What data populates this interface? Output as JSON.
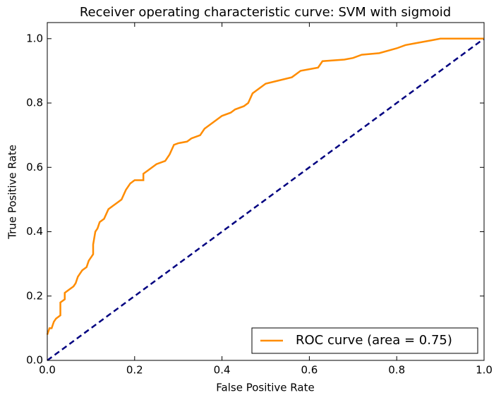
{
  "chart_data": {
    "type": "line",
    "title": "Receiver operating characteristic curve: SVM with sigmoid",
    "x_label": "False Positive Rate",
    "y_label": "True Positive Rate",
    "xlim": [
      0,
      1
    ],
    "ylim": [
      0,
      1.05
    ],
    "xticks": [
      {
        "value": 0,
        "label": "0.0"
      },
      0.2,
      0.4,
      0.6,
      0.8,
      {
        "value": 1,
        "label": "1.0"
      }
    ],
    "yticks": [
      {
        "value": 0,
        "label": "0.0"
      },
      0.2,
      0.4,
      0.6,
      0.8,
      {
        "value": 1,
        "label": "1.0"
      }
    ],
    "legend": "lower right",
    "series": [
      {
        "name": "ROC curve (area = 0.75)",
        "color": "#ff8c00",
        "dash": false,
        "x": [
          0,
          0.005,
          0.01,
          0.015,
          0.02,
          0.03,
          0.03,
          0.04,
          0.04,
          0.05,
          0.06,
          0.065,
          0.07,
          0.075,
          0.08,
          0.09,
          0.095,
          0.1,
          0.105,
          0.105,
          0.11,
          0.115,
          0.12,
          0.13,
          0.14,
          0.15,
          0.16,
          0.17,
          0.18,
          0.19,
          0.2,
          0.22,
          0.22,
          0.23,
          0.25,
          0.27,
          0.28,
          0.29,
          0.3,
          0.32,
          0.33,
          0.35,
          0.36,
          0.38,
          0.4,
          0.42,
          0.43,
          0.45,
          0.46,
          0.47,
          0.48,
          0.5,
          0.53,
          0.56,
          0.58,
          0.6,
          0.62,
          0.63,
          0.68,
          0.7,
          0.72,
          0.76,
          0.8,
          0.82,
          0.84,
          0.86,
          0.88,
          0.9,
          1
        ],
        "values": [
          0.08,
          0.1,
          0.1,
          0.12,
          0.13,
          0.14,
          0.18,
          0.19,
          0.21,
          0.22,
          0.23,
          0.24,
          0.26,
          0.27,
          0.28,
          0.29,
          0.31,
          0.32,
          0.33,
          0.36,
          0.4,
          0.41,
          0.43,
          0.44,
          0.47,
          0.48,
          0.49,
          0.5,
          0.53,
          0.55,
          0.56,
          0.56,
          0.58,
          0.59,
          0.61,
          0.62,
          0.64,
          0.67,
          0.675,
          0.68,
          0.69,
          0.7,
          0.72,
          0.74,
          0.76,
          0.77,
          0.78,
          0.79,
          0.8,
          0.83,
          0.84,
          0.86,
          0.87,
          0.88,
          0.9,
          0.905,
          0.91,
          0.93,
          0.935,
          0.94,
          0.95,
          0.955,
          0.97,
          0.98,
          0.985,
          0.99,
          0.995,
          1,
          1
        ]
      },
      {
        "color": "#000080",
        "dash": true,
        "x": [
          0,
          1
        ],
        "values": [
          0,
          1
        ]
      }
    ]
  }
}
